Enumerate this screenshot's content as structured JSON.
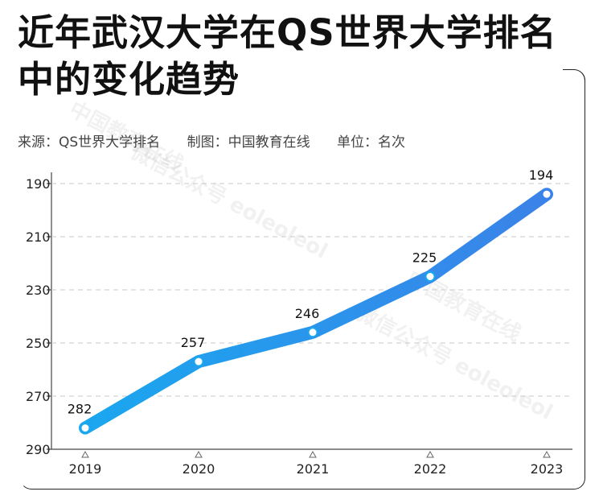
{
  "title": "近年武汉大学在QS世界大学排名中的变化趋势",
  "meta": {
    "source": "来源：QS世界大学排名",
    "producer": "制图：中国教育在线",
    "unit": "单位：名次"
  },
  "watermark": {
    "line1": "中国教育在线",
    "line2": "微信公众号 eoleoleol"
  },
  "colors": {
    "line_start": "#1aa7ef",
    "line_end": "#3b82e8",
    "grid": "#c8c8c8",
    "axis": "#444444"
  },
  "chart_data": {
    "type": "line",
    "title": "近年武汉大学在QS世界大学排名中的变化趋势",
    "xlabel": "",
    "ylabel": "",
    "categories": [
      "2019",
      "2020",
      "2021",
      "2022",
      "2023"
    ],
    "series": [
      {
        "values": [
          282,
          257,
          246,
          225,
          194
        ]
      }
    ],
    "data_labels": [
      "282",
      "257",
      "246",
      "225",
      "194"
    ],
    "y_ticks": [
      190,
      210,
      230,
      250,
      270,
      290
    ],
    "ylim": [
      190,
      290
    ],
    "y_inverted": true,
    "grid": true,
    "legend": "none"
  }
}
